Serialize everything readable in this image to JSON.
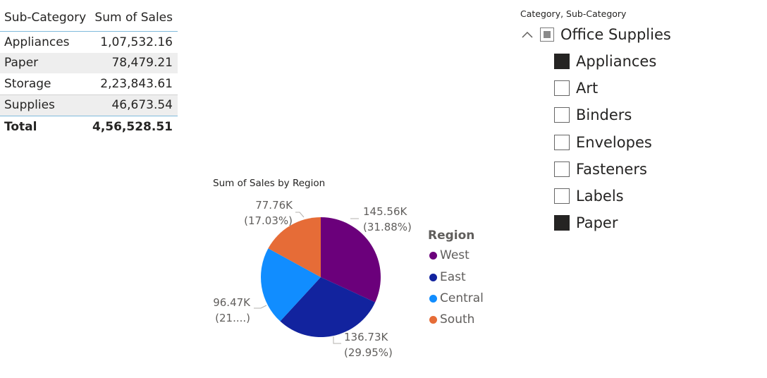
{
  "table": {
    "headers": [
      "Sub-Category",
      "Sum of Sales"
    ],
    "rows": [
      {
        "sub_category": "Appliances",
        "sales": "1,07,532.16"
      },
      {
        "sub_category": "Paper",
        "sales": "78,479.21"
      },
      {
        "sub_category": "Storage",
        "sales": "2,23,843.61"
      },
      {
        "sub_category": "Supplies",
        "sales": "46,673.54"
      }
    ],
    "total": {
      "label": "Total",
      "value": "4,56,528.51"
    }
  },
  "chart_data": {
    "type": "pie",
    "title": "Sum of Sales by Region",
    "legend_title": "Region",
    "legend_position": "right",
    "slices": [
      {
        "name": "West",
        "value": 145.56,
        "display_value": "145.56K",
        "display_percent": "(31.88%)",
        "color": "#6B007B"
      },
      {
        "name": "East",
        "value": 136.73,
        "display_value": "136.73K",
        "display_percent": "(29.95%)",
        "color": "#12239E"
      },
      {
        "name": "Central",
        "value": 96.47,
        "display_value": "96.47K",
        "display_percent": "(21....)",
        "color": "#118DFF"
      },
      {
        "name": "South",
        "value": 77.76,
        "display_value": "77.76K",
        "display_percent": "(17.03%)",
        "color": "#E66C37"
      }
    ]
  },
  "slicer": {
    "header": "Category, Sub-Category",
    "expand_icon": "chevron-up-icon",
    "parent": {
      "label": "Office Supplies",
      "state": "partial"
    },
    "items": [
      {
        "label": "Appliances",
        "checked": true
      },
      {
        "label": "Art",
        "checked": false
      },
      {
        "label": "Binders",
        "checked": false
      },
      {
        "label": "Envelopes",
        "checked": false
      },
      {
        "label": "Fasteners",
        "checked": false
      },
      {
        "label": "Labels",
        "checked": false
      },
      {
        "label": "Paper",
        "checked": true
      }
    ]
  }
}
